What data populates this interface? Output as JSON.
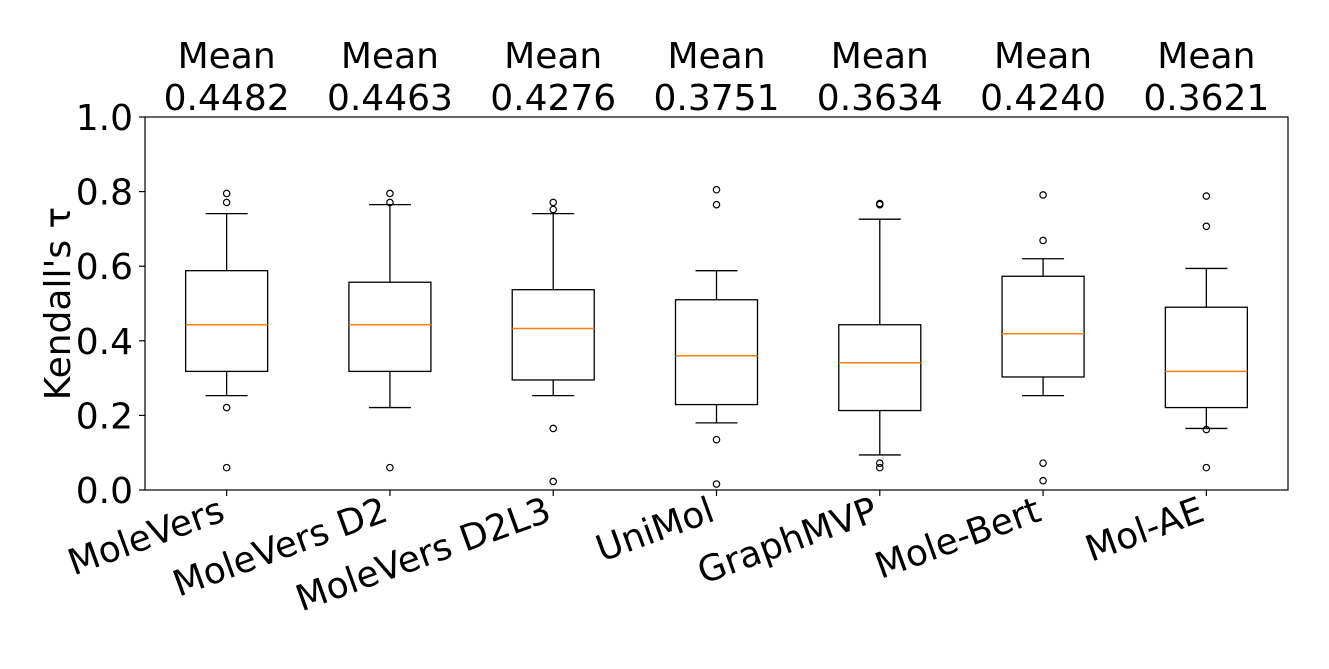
{
  "chart_data": {
    "type": "boxplot",
    "title": "",
    "xlabel": "",
    "ylabel": "Kendall's τ",
    "ylim": [
      0,
      1
    ],
    "yticks": [
      "0.0",
      "0.2",
      "0.4",
      "0.6",
      "0.8",
      "1.0"
    ],
    "ytick_values": [
      0,
      0.2,
      0.4,
      0.6,
      0.8,
      1.0
    ],
    "grid": false,
    "mean_label": "Mean",
    "colors": {
      "box": "#000000",
      "median": "#ff7f0e",
      "axis": "#000000"
    },
    "series": [
      {
        "name": "MoleVers",
        "mean": "0.4482",
        "q1": 0.318,
        "median": 0.443,
        "q3": 0.588,
        "whisker_low": 0.253,
        "whisker_high": 0.741,
        "outliers": [
          0.795,
          0.771,
          0.221,
          0.06
        ]
      },
      {
        "name": "MoleVers D2",
        "mean": "0.4463",
        "q1": 0.318,
        "median": 0.443,
        "q3": 0.557,
        "whisker_low": 0.221,
        "whisker_high": 0.765,
        "outliers": [
          0.795,
          0.771,
          0.06
        ]
      },
      {
        "name": "MoleVers D2L3",
        "mean": "0.4276",
        "q1": 0.295,
        "median": 0.433,
        "q3": 0.537,
        "whisker_low": 0.253,
        "whisker_high": 0.741,
        "outliers": [
          0.771,
          0.752,
          0.165,
          0.023
        ]
      },
      {
        "name": "UniMol",
        "mean": "0.3751",
        "q1": 0.229,
        "median": 0.36,
        "q3": 0.51,
        "whisker_low": 0.18,
        "whisker_high": 0.588,
        "outliers": [
          0.805,
          0.765,
          0.135,
          0.016
        ]
      },
      {
        "name": "GraphMVP",
        "mean": "0.3634",
        "q1": 0.213,
        "median": 0.341,
        "q3": 0.443,
        "whisker_low": 0.094,
        "whisker_high": 0.726,
        "outliers": [
          0.768,
          0.765,
          0.072,
          0.06
        ]
      },
      {
        "name": "Mole-Bert",
        "mean": "0.4240",
        "q1": 0.303,
        "median": 0.419,
        "q3": 0.573,
        "whisker_low": 0.253,
        "whisker_high": 0.62,
        "outliers": [
          0.791,
          0.669,
          0.072,
          0.025
        ]
      },
      {
        "name": "Mol-AE",
        "mean": "0.3621",
        "q1": 0.221,
        "median": 0.318,
        "q3": 0.49,
        "whisker_low": 0.165,
        "whisker_high": 0.594,
        "outliers": [
          0.788,
          0.707,
          0.162,
          0.06
        ]
      }
    ]
  }
}
